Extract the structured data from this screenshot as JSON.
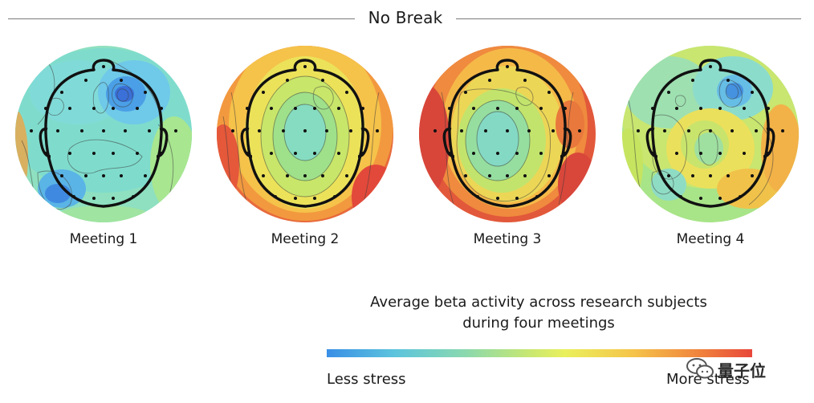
{
  "title": "No Break",
  "maps": [
    {
      "label": "Meeting 1"
    },
    {
      "label": "Meeting 2"
    },
    {
      "label": "Meeting 3"
    },
    {
      "label": "Meeting 4"
    }
  ],
  "legend": {
    "title_line1": "Average beta activity across research subjects",
    "title_line2": "during four meetings",
    "min_label": "Less stress",
    "max_label": "More stress"
  },
  "colors": {
    "low": "#3a8fe6",
    "mid": "#eaf05c",
    "high": "#e8473a"
  },
  "watermark": {
    "text": "量子位"
  }
}
